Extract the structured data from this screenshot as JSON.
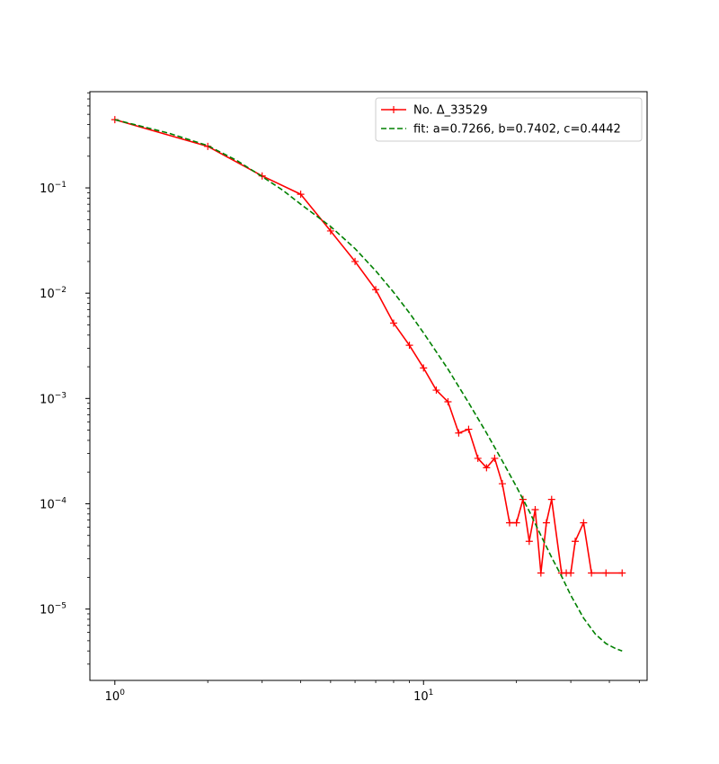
{
  "chart_data": {
    "type": "line",
    "title": "",
    "xlabel": "",
    "ylabel": "",
    "xscale": "log",
    "yscale": "log",
    "xlim": [
      0.83,
      53
    ],
    "ylim": [
      2.1e-06,
      0.82
    ],
    "grid": false,
    "legend_position": "top-right",
    "x_ticks": [
      {
        "value": 1,
        "label": "10",
        "exp": "0"
      },
      {
        "value": 10,
        "label": "10",
        "exp": "1"
      }
    ],
    "y_ticks": [
      {
        "value": 1e-05,
        "label": "10",
        "exp": "−5"
      },
      {
        "value": 0.0001,
        "label": "10",
        "exp": "−4"
      },
      {
        "value": 0.001,
        "label": "10",
        "exp": "−3"
      },
      {
        "value": 0.01,
        "label": "10",
        "exp": "−2"
      },
      {
        "value": 0.1,
        "label": "10",
        "exp": "−1"
      }
    ],
    "series": [
      {
        "name": "No. Δ_33529",
        "color": "#ff0000",
        "style": "solid",
        "marker": "+",
        "x": [
          1,
          2,
          3,
          4,
          5,
          6,
          7,
          8,
          9,
          10,
          11,
          12,
          13,
          14,
          15,
          16,
          17,
          18,
          19,
          20,
          21,
          22,
          23,
          24,
          25,
          26,
          28,
          29,
          30,
          31,
          33,
          35,
          39,
          44
        ],
        "y": [
          0.445,
          0.248,
          0.13,
          0.087,
          0.039,
          0.02,
          0.0108,
          0.0052,
          0.0032,
          0.00195,
          0.0012,
          0.00093,
          0.00047,
          0.00051,
          0.00027,
          0.00022,
          0.00027,
          0.000155,
          6.6e-05,
          6.6e-05,
          0.00011,
          4.4e-05,
          8.8e-05,
          2.2e-05,
          6.6e-05,
          0.00011,
          2.2e-05,
          2.2e-05,
          2.2e-05,
          4.4e-05,
          6.6e-05,
          2.2e-05,
          2.2e-05,
          2.2e-05
        ]
      },
      {
        "name": "fit: a=0.7266, b=0.7402, c=0.4442",
        "color": "#008000",
        "style": "dashed",
        "marker": "",
        "x": [
          1,
          1.5,
          2,
          2.5,
          3,
          3.5,
          4,
          5,
          6,
          7,
          8,
          9,
          10,
          12,
          14,
          16,
          18,
          20,
          22,
          24,
          26,
          28,
          30,
          33,
          36,
          39,
          42,
          44
        ],
        "y": [
          0.445,
          0.33,
          0.252,
          0.18,
          0.128,
          0.095,
          0.07,
          0.043,
          0.0265,
          0.0163,
          0.0102,
          0.0065,
          0.0042,
          0.0019,
          0.00091,
          0.00047,
          0.000255,
          0.000145,
          8.5e-05,
          5e-05,
          3.1e-05,
          2.05e-05,
          1.35e-05,
          8.2e-06,
          5.8e-06,
          4.7e-06,
          4.2e-06,
          4e-06
        ]
      }
    ]
  }
}
